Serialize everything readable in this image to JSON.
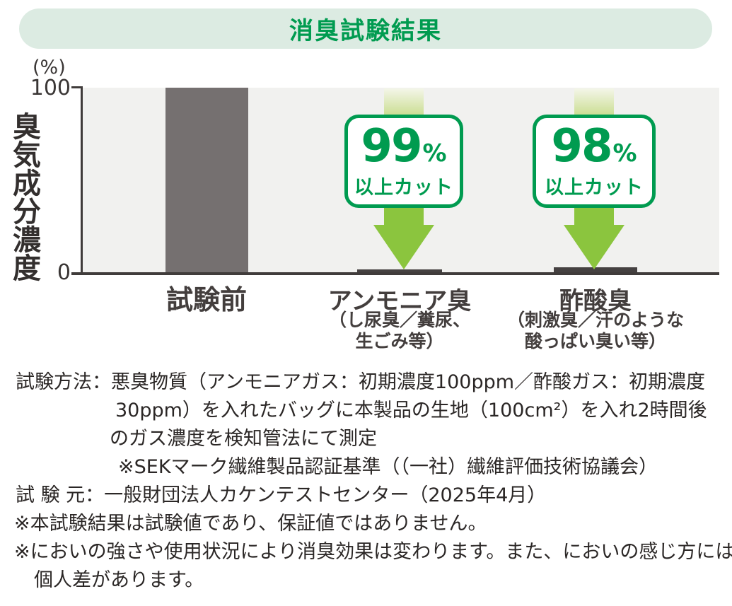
{
  "title": "消臭試験結果",
  "chart_data": {
    "type": "bar",
    "title": "消臭試験結果",
    "ylabel": "臭気成分濃度",
    "y_unit": "(%)",
    "ylim": [
      0,
      100
    ],
    "yticks": [
      "100",
      "0"
    ],
    "grid": false,
    "plot_bg": "#f1f1ef",
    "categories": [
      "試験前",
      "アンモニア臭",
      "酢酸臭"
    ],
    "category_subnotes": [
      [],
      [
        "（し尿臭／糞尿、",
        "生ごみ等）"
      ],
      [
        "（刺激臭／汗のような",
        "酸っぱい臭い等）"
      ]
    ],
    "values": [
      100,
      1,
      2
    ],
    "bar_colors": [
      "#757070",
      "#454141",
      "#454141"
    ],
    "annotations": [
      {
        "target": "アンモニア臭",
        "value": "99",
        "unit": "%",
        "label": "以上カット"
      },
      {
        "target": "酢酸臭",
        "value": "98",
        "unit": "%",
        "label": "以上カット"
      }
    ]
  },
  "notes": {
    "lines": [
      "試験方法：悪臭物質（アンモニアガス：初期濃度100ppm／酢酸ガス：初期濃度",
      "30ppm）を入れたバッグに本製品の生地（100cm²）を入れ2時間後",
      "のガス濃度を検知管法にて測定",
      "※SEKマーク繊維製品認証基準（（一社）繊維評価技術協議会）",
      "試 験 元：一般財団法人カケンテストセンター（2025年4月）",
      "※本試験結果は試験値であり、保証値ではありません。",
      "※においの強さや使用状況により消臭効果は変わります。また、においの感じ方には",
      "個人差があります。"
    ]
  },
  "colors": {
    "accent_green": "#009b50",
    "arrow_green": "#8bc53e",
    "banner_bg": "#dcebe2",
    "bar_gray": "#757070",
    "residual_gray": "#454141",
    "plot_bg": "#f1f1ef",
    "axis": "#403c3b",
    "text": "#2b2726"
  }
}
